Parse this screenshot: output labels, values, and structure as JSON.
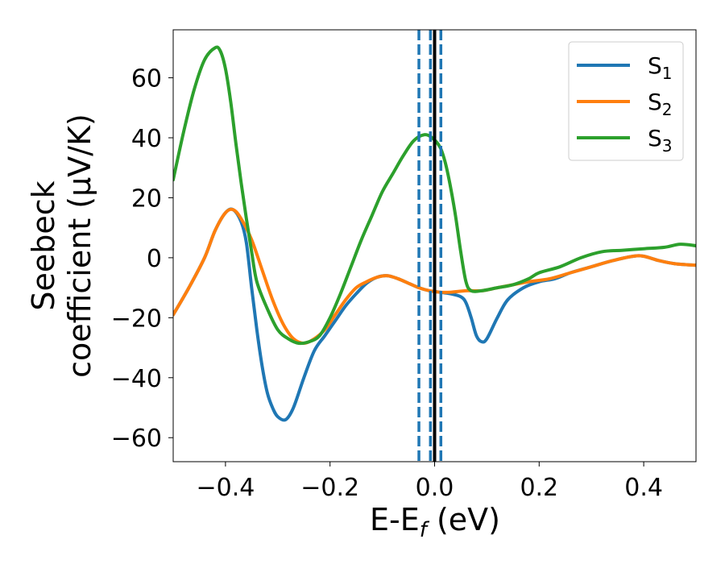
{
  "chart_data": {
    "type": "line",
    "xlabel": "E-E",
    "xlabel_sub": "f",
    "xlabel_suffix": " (eV)",
    "ylabel_line1": "Seebeck",
    "ylabel_line2": "coefficient  (μV/K)",
    "xlim": [
      -0.5,
      0.5
    ],
    "ylim": [
      -68,
      76
    ],
    "xticks": [
      -0.4,
      -0.2,
      0.0,
      0.2,
      0.4
    ],
    "xtick_labels": [
      "−0.4",
      "−0.2",
      "0.0",
      "0.2",
      "0.4"
    ],
    "yticks": [
      -60,
      -40,
      -20,
      0,
      20,
      40,
      60
    ],
    "ytick_labels": [
      "−60",
      "−40",
      "−20",
      "0",
      "20",
      "40",
      "60"
    ],
    "grid": false,
    "legend_position": "top-right",
    "vlines": [
      {
        "x": 0.0,
        "style": "solid",
        "color": "#000000"
      },
      {
        "x": -0.03,
        "style": "dashed",
        "color": "#1f77b4"
      },
      {
        "x": -0.008,
        "style": "dashed",
        "color": "#1f77b4"
      },
      {
        "x": 0.012,
        "style": "dashed",
        "color": "#1f77b4"
      }
    ],
    "series": [
      {
        "name": "S",
        "sub": "1",
        "color": "#1f77b4",
        "points": [
          [
            -0.5,
            -19
          ],
          [
            -0.47,
            -10
          ],
          [
            -0.44,
            0
          ],
          [
            -0.42,
            9
          ],
          [
            -0.4,
            15
          ],
          [
            -0.385,
            16
          ],
          [
            -0.37,
            12
          ],
          [
            -0.36,
            5
          ],
          [
            -0.35,
            -10
          ],
          [
            -0.34,
            -24
          ],
          [
            -0.33,
            -36
          ],
          [
            -0.32,
            -45
          ],
          [
            -0.31,
            -50
          ],
          [
            -0.3,
            -53
          ],
          [
            -0.285,
            -54
          ],
          [
            -0.27,
            -50
          ],
          [
            -0.25,
            -40
          ],
          [
            -0.23,
            -31
          ],
          [
            -0.21,
            -26
          ],
          [
            -0.19,
            -21
          ],
          [
            -0.17,
            -16
          ],
          [
            -0.15,
            -12
          ],
          [
            -0.13,
            -8.5
          ],
          [
            -0.11,
            -6.5
          ],
          [
            -0.09,
            -6
          ],
          [
            -0.07,
            -7
          ],
          [
            -0.05,
            -8.5
          ],
          [
            -0.03,
            -10
          ],
          [
            -0.01,
            -11
          ],
          [
            0.01,
            -11.5
          ],
          [
            0.03,
            -12
          ],
          [
            0.05,
            -13
          ],
          [
            0.06,
            -15
          ],
          [
            0.07,
            -20
          ],
          [
            0.08,
            -26
          ],
          [
            0.09,
            -28
          ],
          [
            0.1,
            -27
          ],
          [
            0.12,
            -20
          ],
          [
            0.14,
            -14
          ],
          [
            0.17,
            -10
          ],
          [
            0.2,
            -8
          ],
          [
            0.23,
            -7
          ],
          [
            0.26,
            -5
          ],
          [
            0.3,
            -3
          ],
          [
            0.34,
            -1
          ],
          [
            0.38,
            0.5
          ],
          [
            0.4,
            0.5
          ],
          [
            0.43,
            -1
          ],
          [
            0.46,
            -2
          ],
          [
            0.5,
            -2.5
          ]
        ]
      },
      {
        "name": "S",
        "sub": "2",
        "color": "#ff7f0e",
        "points": [
          [
            -0.5,
            -19
          ],
          [
            -0.47,
            -10
          ],
          [
            -0.44,
            0
          ],
          [
            -0.42,
            9
          ],
          [
            -0.4,
            15
          ],
          [
            -0.385,
            16
          ],
          [
            -0.37,
            13
          ],
          [
            -0.35,
            6
          ],
          [
            -0.33,
            -4
          ],
          [
            -0.31,
            -14
          ],
          [
            -0.29,
            -22
          ],
          [
            -0.27,
            -27
          ],
          [
            -0.25,
            -28.5
          ],
          [
            -0.23,
            -27
          ],
          [
            -0.21,
            -24
          ],
          [
            -0.19,
            -19
          ],
          [
            -0.17,
            -14
          ],
          [
            -0.15,
            -10
          ],
          [
            -0.13,
            -8
          ],
          [
            -0.11,
            -6.5
          ],
          [
            -0.09,
            -6
          ],
          [
            -0.07,
            -7
          ],
          [
            -0.05,
            -8.5
          ],
          [
            -0.03,
            -10
          ],
          [
            -0.01,
            -11
          ],
          [
            0.01,
            -11.5
          ],
          [
            0.03,
            -11.5
          ],
          [
            0.06,
            -11
          ],
          [
            0.09,
            -11
          ],
          [
            0.12,
            -10
          ],
          [
            0.15,
            -9
          ],
          [
            0.18,
            -8
          ],
          [
            0.22,
            -7
          ],
          [
            0.26,
            -5
          ],
          [
            0.3,
            -3
          ],
          [
            0.34,
            -1
          ],
          [
            0.38,
            0.5
          ],
          [
            0.4,
            0.5
          ],
          [
            0.43,
            -1
          ],
          [
            0.46,
            -2
          ],
          [
            0.5,
            -2.5
          ]
        ]
      },
      {
        "name": "S",
        "sub": "3",
        "color": "#2ca02c",
        "points": [
          [
            -0.5,
            26
          ],
          [
            -0.48,
            42
          ],
          [
            -0.46,
            56
          ],
          [
            -0.44,
            66
          ],
          [
            -0.42,
            70
          ],
          [
            -0.41,
            69
          ],
          [
            -0.4,
            63
          ],
          [
            -0.39,
            52
          ],
          [
            -0.38,
            38
          ],
          [
            -0.37,
            25
          ],
          [
            -0.36,
            13
          ],
          [
            -0.35,
            2
          ],
          [
            -0.34,
            -8
          ],
          [
            -0.32,
            -17
          ],
          [
            -0.3,
            -24
          ],
          [
            -0.28,
            -27
          ],
          [
            -0.26,
            -28.5
          ],
          [
            -0.24,
            -28
          ],
          [
            -0.22,
            -26
          ],
          [
            -0.2,
            -20
          ],
          [
            -0.18,
            -12
          ],
          [
            -0.16,
            -3
          ],
          [
            -0.14,
            6
          ],
          [
            -0.12,
            14
          ],
          [
            -0.1,
            22
          ],
          [
            -0.08,
            28
          ],
          [
            -0.06,
            34
          ],
          [
            -0.04,
            39
          ],
          [
            -0.02,
            41
          ],
          [
            -0.005,
            40
          ],
          [
            0.01,
            37
          ],
          [
            0.02,
            32
          ],
          [
            0.03,
            24
          ],
          [
            0.04,
            14
          ],
          [
            0.05,
            2
          ],
          [
            0.06,
            -8
          ],
          [
            0.07,
            -11
          ],
          [
            0.09,
            -11
          ],
          [
            0.12,
            -10
          ],
          [
            0.15,
            -9
          ],
          [
            0.18,
            -7
          ],
          [
            0.2,
            -5
          ],
          [
            0.24,
            -3
          ],
          [
            0.28,
            0
          ],
          [
            0.32,
            2
          ],
          [
            0.36,
            2.5
          ],
          [
            0.4,
            3
          ],
          [
            0.44,
            3.5
          ],
          [
            0.47,
            4.5
          ],
          [
            0.5,
            4
          ]
        ]
      }
    ]
  }
}
